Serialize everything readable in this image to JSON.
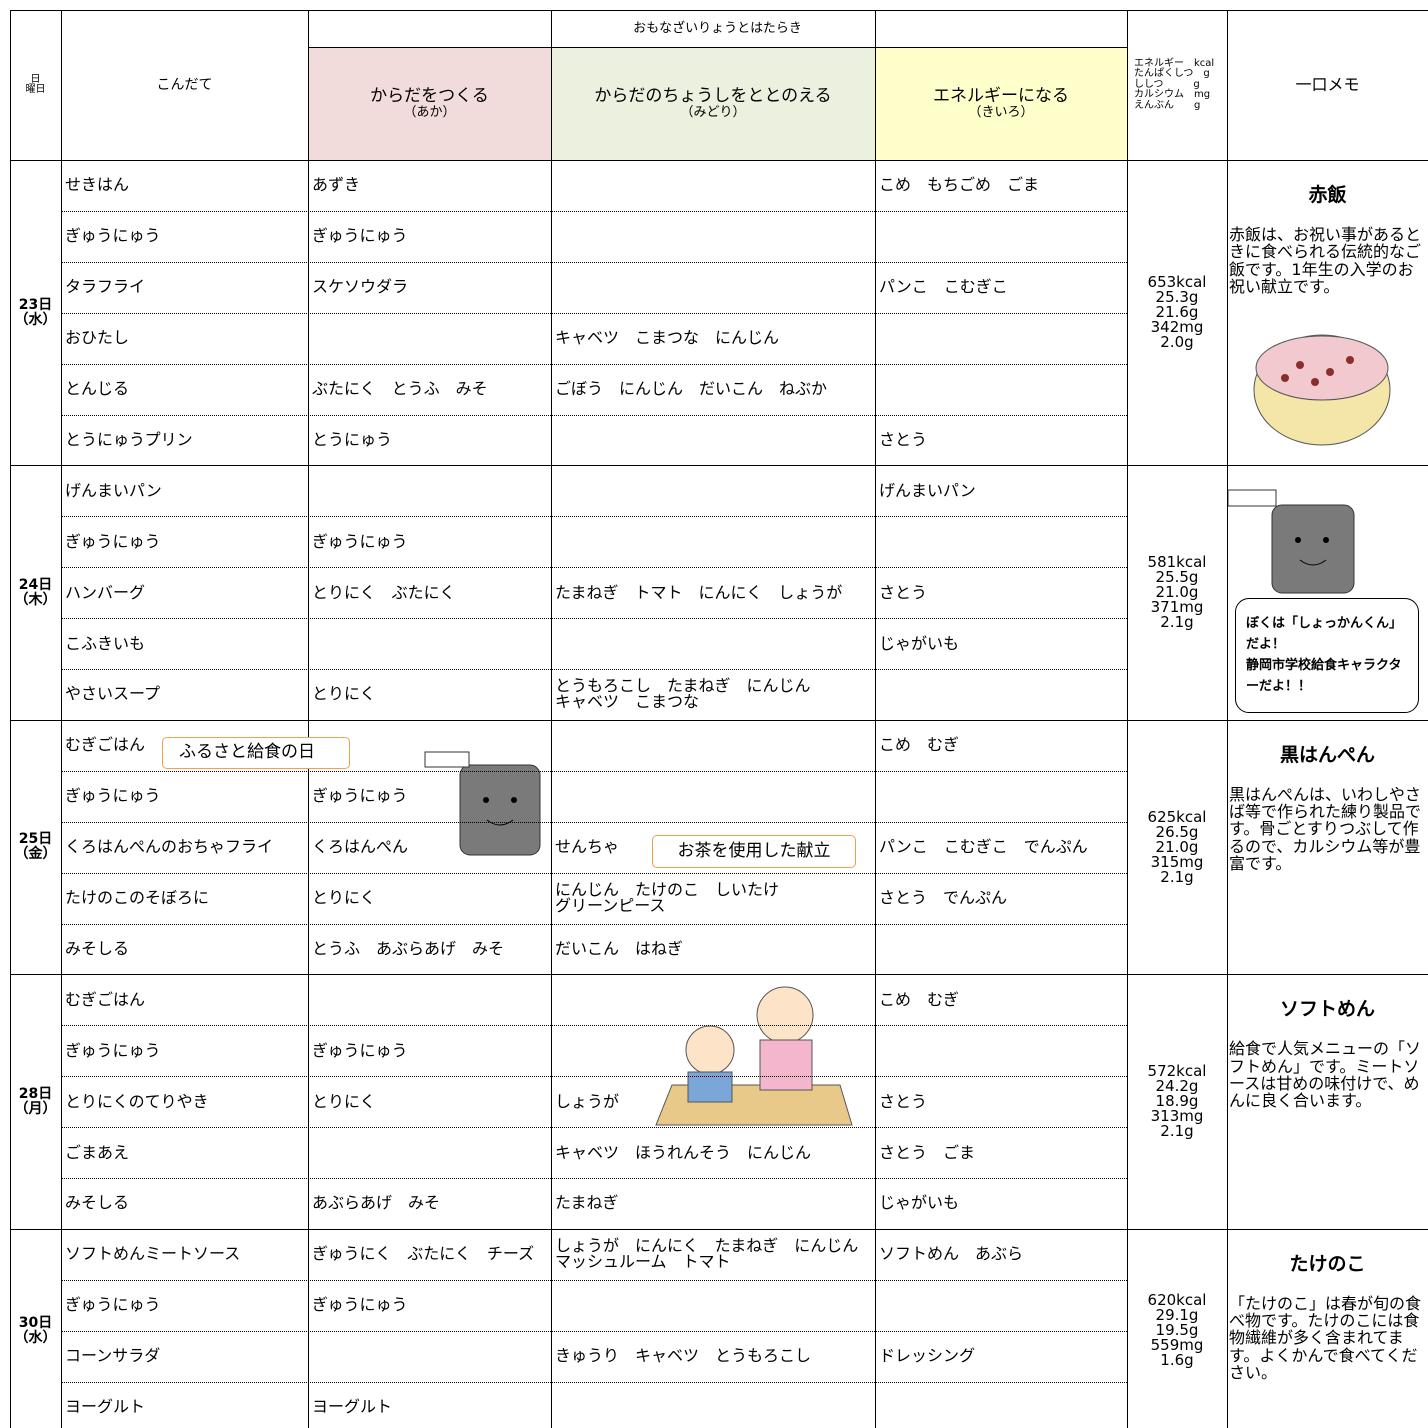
{
  "header": {
    "date_header": [
      "日",
      "曜日"
    ],
    "menu_header": "こんだて",
    "function_header": "おもなざいりょうとはたらき",
    "groups": [
      {
        "title": "からだをつくる",
        "subtitle": "（あか）"
      },
      {
        "title": "からだのちょうしをととのえる",
        "subtitle": "（みどり）"
      },
      {
        "title": "エネルギーになる",
        "subtitle": "（きいろ）"
      }
    ],
    "nutrition_header": [
      "エネルギー　kcal",
      "たんぱくしつ　g",
      "ししつ　　　g",
      "カルシウム　mg",
      "えんぶん　　g"
    ],
    "memo_header": "一口メモ"
  },
  "days": [
    {
      "date": "23日",
      "weekday": "（水）",
      "rows": [
        [
          "せきはん",
          "あずき",
          null,
          "こめ　もちごめ　ごま"
        ],
        [
          "ぎゅうにゅう",
          "ぎゅうにゅう",
          null,
          null
        ],
        [
          "タラフライ",
          "スケソウダラ",
          null,
          "パンこ　こむぎこ"
        ],
        [
          "おひたし",
          null,
          "キャベツ　こまつな　にんじん",
          null
        ],
        [
          "とんじる",
          "ぶたにく　とうふ　みそ",
          "ごぼう　にんじん　だいこん　ねぶか",
          null
        ],
        [
          "とうにゅうプリン",
          "とうにゅう",
          null,
          "さとう"
        ]
      ],
      "nutrition": [
        "653kcal",
        "25.3g",
        "21.6g",
        "342mg",
        "2.0g"
      ],
      "memo_title": "赤飯",
      "memo_text": "赤飯は、お祝い事があるときに食べられる伝統的なご飯です。1年生の入学のお祝い献立です。"
    },
    {
      "date": "24日",
      "weekday": "（木）",
      "rows": [
        [
          "げんまいパン",
          null,
          null,
          "げんまいパン"
        ],
        [
          "ぎゅうにゅう",
          "ぎゅうにゅう",
          null,
          null
        ],
        [
          "ハンバーグ",
          "とりにく　ぶたにく",
          "たまねぎ　トマト　にんにく　しょうが",
          "さとう"
        ],
        [
          "こふきいも",
          null,
          null,
          "じゃがいも"
        ],
        [
          "やさいスープ",
          "とりにく",
          "とうもろこし　たまねぎ　にんじん\nキャベツ　こまつな",
          null
        ]
      ],
      "nutrition": [
        "581kcal",
        "25.5g",
        "21.0g",
        "371mg",
        "2.1g"
      ],
      "memo_bubble": "ぼくは「しょっかんくん」だよ！\n静岡市学校給食キャラクターだよ！！"
    },
    {
      "date": "25日",
      "weekday": "（金）",
      "rows": [
        [
          "むぎごはん",
          null,
          null,
          "こめ　むぎ"
        ],
        [
          "ぎゅうにゅう",
          "ぎゅうにゅう",
          null,
          null
        ],
        [
          "くろはんぺんのおちゃフライ",
          "くろはんぺん",
          "せんちゃ",
          "パンこ　こむぎこ　でんぷん"
        ],
        [
          "たけのこのそぼろに",
          "とりにく",
          "にんじん　たけのこ　しいたけ\nグリーンピース",
          "さとう　でんぷん"
        ],
        [
          "みそしる",
          "とうふ　あぶらあげ　みそ",
          "だいこん　はねぎ",
          null
        ]
      ],
      "nutrition": [
        "625kcal",
        "26.5g",
        "21.0g",
        "315mg",
        "2.1g"
      ],
      "memo_title": "黒はんぺん",
      "memo_text": "黒はんぺんは、いわしやさば等で作られた練り製品です。骨ごとすりつぶして作るので、カルシウム等が豊富です。"
    },
    {
      "date": "28日",
      "weekday": "（月）",
      "rows": [
        [
          "むぎごはん",
          null,
          null,
          "こめ　むぎ"
        ],
        [
          "ぎゅうにゅう",
          "ぎゅうにゅう",
          null,
          null
        ],
        [
          "とりにくのてりやき",
          "とりにく",
          "しょうが",
          "さとう"
        ],
        [
          "ごまあえ",
          null,
          "キャベツ　ほうれんそう　にんじん",
          "さとう　ごま"
        ],
        [
          "みそしる",
          "あぶらあげ　みそ",
          "たまねぎ",
          "じゃがいも"
        ]
      ],
      "nutrition": [
        "572kcal",
        "24.2g",
        "18.9g",
        "313mg",
        "2.1g"
      ],
      "memo_title": "ソフトめん",
      "memo_text": "給食で人気メニューの「ソフトめん」です。ミートソースは甘めの味付けで、めんに良く合います。"
    },
    {
      "date": "30日",
      "weekday": "（水）",
      "rows": [
        [
          "ソフトめんミートソース",
          "ぎゅうにく　ぶたにく　チーズ",
          "しょうが　にんにく　たまねぎ　にんじん\nマッシュルーム　トマト",
          "ソフトめん　あぶら"
        ],
        [
          "ぎゅうにゅう",
          "ぎゅうにゅう",
          null,
          null
        ],
        [
          "コーンサラダ",
          null,
          "きゅうり　キャベツ　とうもろこし",
          "ドレッシング"
        ],
        [
          "ヨーグルト",
          "ヨーグルト",
          null,
          null
        ]
      ],
      "nutrition": [
        "620kcal",
        "29.1g",
        "19.5g",
        "559mg",
        "1.6g"
      ],
      "memo_title": "たけのこ",
      "memo_text": "「たけのこ」は春が旬の食べ物です。たけのこには食物繊維が多く含まれてます。よくかんで食べてください。"
    }
  ],
  "callouts": [
    "ふるさと給食の日",
    "お茶を使用した献立"
  ]
}
